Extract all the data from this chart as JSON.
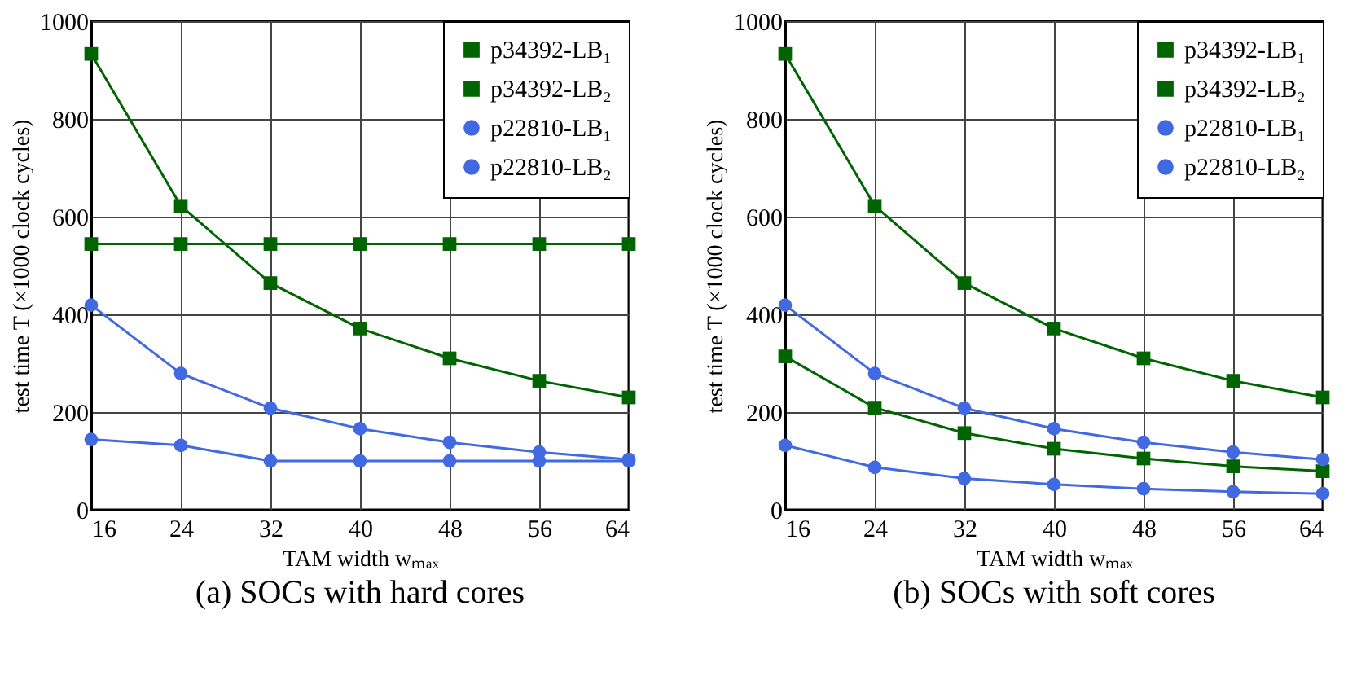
{
  "chart_data": [
    {
      "type": "line",
      "title": "(a) SOCs with hard cores",
      "xlabel": "TAM width wₘₐₓ",
      "ylabel": "test time T (×1000 clock cycles)",
      "x": [
        16,
        24,
        32,
        40,
        48,
        56,
        64
      ],
      "xlim": [
        16,
        64
      ],
      "xticks": [
        16,
        24,
        32,
        40,
        48,
        56,
        64
      ],
      "ylim": [
        0,
        1000
      ],
      "yticks": [
        0,
        200,
        400,
        600,
        800,
        1000
      ],
      "grid": true,
      "legend": "top right",
      "series": [
        {
          "name": "p34392-LB₁",
          "color": "#006400",
          "marker": "square",
          "values": [
            544,
            544,
            544,
            544,
            544,
            544,
            544
          ]
        },
        {
          "name": "p34392-LB₂",
          "color": "#006400",
          "marker": "square",
          "values": [
            933,
            622,
            464,
            371,
            310,
            264,
            230
          ]
        },
        {
          "name": "p22810-LB₁",
          "color": "#4169e1",
          "marker": "circle",
          "values": [
            144,
            132,
            100,
            100,
            100,
            100,
            100
          ]
        },
        {
          "name": "p22810-LB₂",
          "color": "#4169e1",
          "marker": "circle",
          "values": [
            419,
            279,
            208,
            166,
            138,
            118,
            103
          ]
        }
      ]
    },
    {
      "type": "line",
      "title": "(b) SOCs with soft cores",
      "xlabel": "TAM width wₘₐₓ",
      "ylabel": "test time T (×1000 clock cycles)",
      "x": [
        16,
        24,
        32,
        40,
        48,
        56,
        64
      ],
      "xlim": [
        16,
        64
      ],
      "xticks": [
        16,
        24,
        32,
        40,
        48,
        56,
        64
      ],
      "ylim": [
        0,
        1000
      ],
      "yticks": [
        0,
        200,
        400,
        600,
        800,
        1000
      ],
      "grid": true,
      "legend": "top right",
      "series": [
        {
          "name": "p34392-LB₁",
          "color": "#006400",
          "marker": "square",
          "values": [
            314,
            209,
            157,
            125,
            105,
            89,
            79
          ]
        },
        {
          "name": "p34392-LB₂",
          "color": "#006400",
          "marker": "square",
          "values": [
            933,
            622,
            464,
            371,
            310,
            264,
            230
          ]
        },
        {
          "name": "p22810-LB₁",
          "color": "#4169e1",
          "marker": "circle",
          "values": [
            132,
            87,
            64,
            52,
            43,
            37,
            33
          ]
        },
        {
          "name": "p22810-LB₂",
          "color": "#4169e1",
          "marker": "circle",
          "values": [
            419,
            279,
            208,
            166,
            138,
            118,
            103
          ]
        }
      ]
    }
  ]
}
